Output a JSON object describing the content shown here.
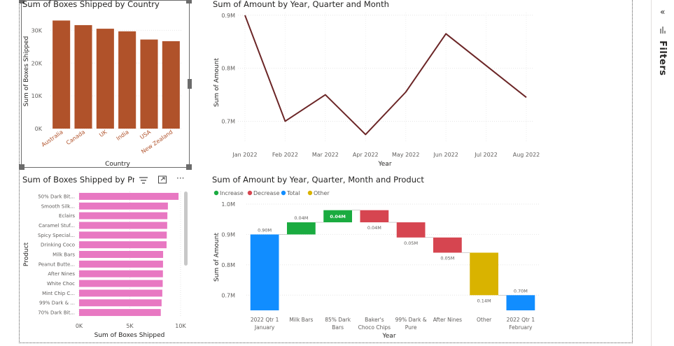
{
  "filters_pane": {
    "label": "Filters",
    "collapse_glyph": "«",
    "icon": "filter-icon"
  },
  "icons": {
    "filter": "filter-lines-icon",
    "focus": "focus-mode-icon",
    "more": "more-options-icon"
  },
  "more_glyph": "···",
  "chart_data": [
    {
      "id": "boxes-by-country",
      "type": "bar",
      "title": "Sum of Boxes Shipped by Country",
      "xlabel": "Country",
      "ylabel": "Sum of Boxes Shipped",
      "categories": [
        "Australia",
        "Canada",
        "UK",
        "India",
        "USA",
        "New Zealand"
      ],
      "values": [
        33000,
        31600,
        30500,
        29700,
        27200,
        26700
      ],
      "ylim": [
        0,
        35000
      ],
      "yticks": [
        0,
        10000,
        20000,
        30000
      ],
      "ytick_labels": [
        "0K",
        "10K",
        "20K",
        "30K"
      ],
      "color": "#B0522A",
      "axis_label_color": "#B0522A",
      "grid": true
    },
    {
      "id": "amount-by-month",
      "type": "line",
      "title": "Sum of Amount by Year, Quarter and Month",
      "xlabel": "Year",
      "ylabel": "Sum of Amount",
      "x": [
        "Jan 2022",
        "Feb 2022",
        "Mar 2022",
        "Apr 2022",
        "May 2022",
        "Jun 2022",
        "Jul 2022",
        "Aug 2022"
      ],
      "values": [
        0.9,
        0.7,
        0.75,
        0.675,
        0.755,
        0.865,
        0.805,
        0.745
      ],
      "ylim": [
        0.665,
        0.905
      ],
      "yticks": [
        0.7,
        0.8,
        0.9
      ],
      "ytick_labels": [
        "0.7M",
        "0.8M",
        "0.9M"
      ],
      "color": "#6B2526",
      "grid": true
    },
    {
      "id": "boxes-by-product",
      "type": "bar",
      "orientation": "horizontal",
      "title": "Sum of Boxes Shipped by Produ",
      "xlabel": "Sum of Boxes Shipped",
      "ylabel": "Product",
      "categories": [
        "50% Dark Bit...",
        "Smooth Silk...",
        "Eclairs",
        "Caramel Stuf...",
        "Spicy Special...",
        "Drinking Coco",
        "Milk Bars",
        "Peanut Butte...",
        "After Nines",
        "White Choc",
        "Mint Chip C...",
        "99% Dark & ...",
        "70% Dark Bit..."
      ],
      "values": [
        9800,
        8750,
        8700,
        8680,
        8640,
        8620,
        8280,
        8270,
        8260,
        8240,
        8200,
        8130,
        8050
      ],
      "xlim": [
        0,
        10000
      ],
      "xticks": [
        0,
        5000,
        10000
      ],
      "xtick_labels": [
        "0K",
        "5K",
        "10K"
      ],
      "color": "#E878C2",
      "grid": true
    },
    {
      "id": "amount-waterfall",
      "type": "waterfall",
      "title": "Sum of Amount by Year, Quarter, Month and Product",
      "xlabel": "Year",
      "ylabel": "Sum of Amount",
      "legend": [
        {
          "label": "Increase",
          "color": "#1AAB40"
        },
        {
          "label": "Decrease",
          "color": "#D64550"
        },
        {
          "label": "Total",
          "color": "#118DFF"
        },
        {
          "label": "Other",
          "color": "#D9B300"
        }
      ],
      "legend_position": "top-left",
      "categories": [
        "2022 Qtr 1|January",
        "Milk Bars",
        "85% Dark|Bars",
        "Baker's|Choco Chips",
        "99% Dark &|Pure",
        "After Nines",
        "Other",
        "2022 Qtr 1|February"
      ],
      "bars": [
        {
          "kind": "Total",
          "start": 0,
          "end": 0.9,
          "label": "0.90M"
        },
        {
          "kind": "Increase",
          "start": 0.9,
          "end": 0.94,
          "label": "0.04M"
        },
        {
          "kind": "Increase",
          "start": 0.94,
          "end": 0.98,
          "label": "0.04M"
        },
        {
          "kind": "Decrease",
          "start": 0.98,
          "end": 0.94,
          "label": "0.04M"
        },
        {
          "kind": "Decrease",
          "start": 0.94,
          "end": 0.89,
          "label": "0.05M"
        },
        {
          "kind": "Decrease",
          "start": 0.89,
          "end": 0.84,
          "label": "0.05M"
        },
        {
          "kind": "Other",
          "start": 0.84,
          "end": 0.7,
          "label": "0.14M"
        },
        {
          "kind": "Total",
          "start": 0,
          "end": 0.7,
          "label": "0.70M"
        }
      ],
      "ylim": [
        0.65,
        1.0
      ],
      "yticks": [
        0.7,
        0.8,
        0.9,
        1.0
      ],
      "ytick_labels": [
        "0.7M",
        "0.8M",
        "0.9M",
        "1.0M"
      ],
      "grid": true
    }
  ]
}
